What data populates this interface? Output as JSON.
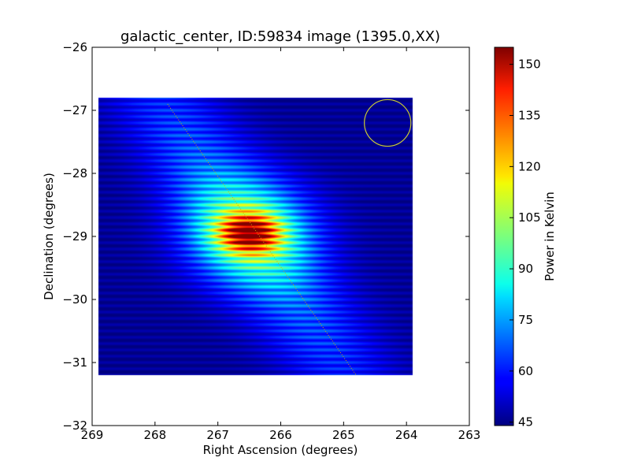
{
  "chart_data": {
    "type": "heatmap",
    "title": "galactic_center, ID:59834 image (1395.0,XX)",
    "xlabel": "Right Ascension (degrees)",
    "ylabel": "Declination (degrees)",
    "xlim": [
      269,
      263
    ],
    "ylim": [
      -32,
      -26
    ],
    "xticks": [
      269,
      268,
      267,
      266,
      265,
      264,
      263
    ],
    "xtick_labels": [
      "269",
      "268",
      "267",
      "266",
      "265",
      "264",
      "263"
    ],
    "yticks": [
      -26,
      -27,
      -28,
      -29,
      -30,
      -31,
      -32
    ],
    "ytick_labels": [
      "−26",
      "−27",
      "−28",
      "−29",
      "−30",
      "−31",
      "−32"
    ],
    "colormap": "jet",
    "colorbar": {
      "label": "Power in Kelvin",
      "range": [
        44,
        155
      ],
      "ticks": [
        45,
        60,
        75,
        90,
        105,
        120,
        135,
        150
      ],
      "tick_labels": [
        "45",
        "60",
        "75",
        "90",
        "105",
        "120",
        "135",
        "150"
      ]
    },
    "image_extent": {
      "ra": [
        268.9,
        263.9
      ],
      "dec": [
        -31.2,
        -26.8
      ]
    },
    "source": {
      "ra": 266.5,
      "dec": -28.95,
      "peak": 155,
      "background": 46
    },
    "beam_circle": {
      "ra": 264.3,
      "dec": -27.2,
      "radius_deg": 0.37,
      "color": "#cccc33"
    },
    "galactic_plane_line": {
      "start": {
        "ra": 267.8,
        "dec": -26.9
      },
      "end": {
        "ra": 264.8,
        "dec": -31.2
      },
      "color": "#ccaa00"
    }
  }
}
